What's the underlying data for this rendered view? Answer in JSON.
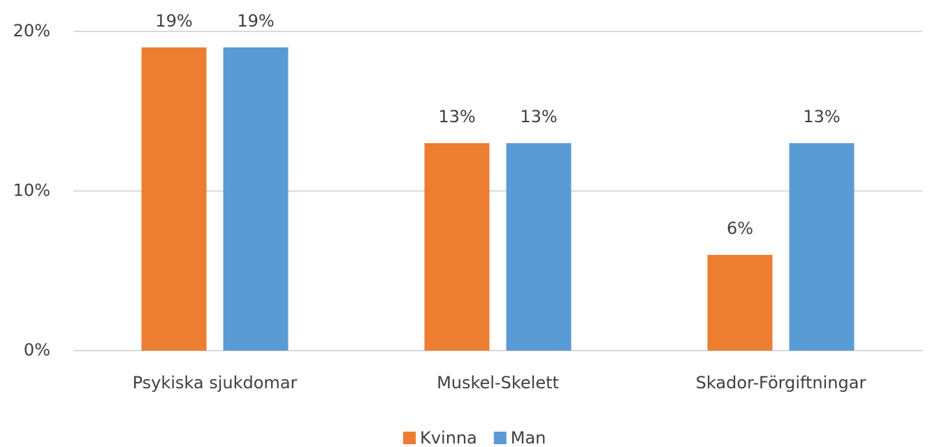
{
  "chart_data": {
    "type": "bar",
    "categories": [
      "Psykiska sjukdomar",
      "Muskel-Skelett",
      "Skador-Förgiftningar"
    ],
    "series": [
      {
        "name": "Kvinna",
        "color": "#ed7d31",
        "values": [
          19,
          13,
          6
        ],
        "value_labels": [
          "19%",
          "13%",
          "6%"
        ]
      },
      {
        "name": "Man",
        "color": "#5b9bd5",
        "values": [
          19,
          13,
          13
        ],
        "value_labels": [
          "19%",
          "13%",
          "13%"
        ]
      }
    ],
    "ylim": [
      0,
      20
    ],
    "yticks": [
      {
        "value": 0,
        "label": "0%"
      },
      {
        "value": 10,
        "label": "10%"
      },
      {
        "value": 20,
        "label": "20%"
      }
    ],
    "grid": true,
    "legend": "bottom"
  }
}
